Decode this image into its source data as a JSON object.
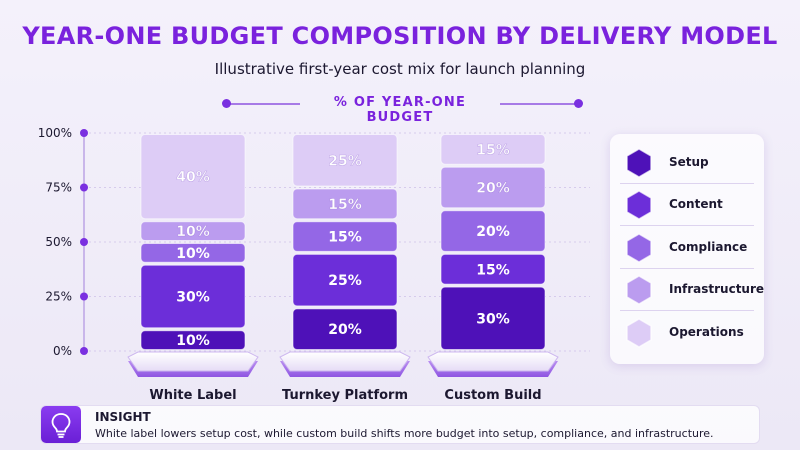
{
  "header": {
    "title": "YEAR-ONE BUDGET COMPOSITION BY DELIVERY MODEL",
    "subtitle": "Illustrative first-year cost mix for launch planning",
    "axis_caption": "% OF YEAR-ONE BUDGET"
  },
  "chart_data": {
    "type": "bar",
    "stacked": true,
    "title": "YEAR-ONE BUDGET COMPOSITION BY DELIVERY MODEL",
    "subtitle": "Illustrative first-year cost mix for launch planning",
    "ylabel": "% OF YEAR-ONE BUDGET",
    "xlabel": "",
    "ylim": [
      0,
      100
    ],
    "y_ticks": [
      "0%",
      "25%",
      "50%",
      "75%",
      "100%"
    ],
    "y_tick_values": [
      0,
      25,
      50,
      75,
      100
    ],
    "categories": [
      "White Label",
      "Turnkey Platform",
      "Custom Build"
    ],
    "series": [
      {
        "name": "Setup",
        "values": [
          10,
          20,
          30
        ],
        "color": "#4e11b8"
      },
      {
        "name": "Content",
        "values": [
          30,
          25,
          15
        ],
        "color": "#6c2ed9"
      },
      {
        "name": "Compliance",
        "values": [
          10,
          15,
          20
        ],
        "color": "#9467e6"
      },
      {
        "name": "Infrastructure",
        "values": [
          10,
          15,
          20
        ],
        "color": "#bb9cef"
      },
      {
        "name": "Operations",
        "values": [
          40,
          25,
          15
        ],
        "color": "#ddccf6"
      }
    ],
    "legend_position": "right",
    "grid": true
  },
  "insight": {
    "heading": "INSIGHT",
    "text": "White label lowers setup cost, while custom build shifts more budget into setup, compliance, and infrastructure.",
    "icon": "lightbulb-icon"
  }
}
